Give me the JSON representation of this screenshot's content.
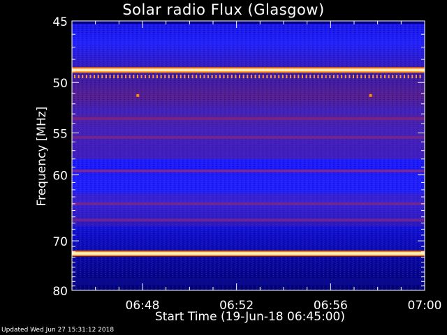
{
  "chart_data": {
    "type": "heatmap",
    "title": "Solar radio Flux (Glasgow)",
    "xlabel": "Start Time (19-Jun-18 06:45:00)",
    "ylabel": "Frequency [MHz]",
    "x_range": [
      "06:45",
      "07:00"
    ],
    "x_ticks": [
      {
        "value": "06:48",
        "minute": 48
      },
      {
        "value": "06:52",
        "minute": 52
      },
      {
        "value": "06:56",
        "minute": 56
      },
      {
        "value": "07:00",
        "minute": 60
      }
    ],
    "y_range": [
      45,
      80
    ],
    "y_ticks": [
      45,
      50,
      55,
      60,
      70,
      80
    ],
    "y_scale": "reciprocal",
    "colormap": [
      "#000050",
      "#0a0ad2",
      "#1e1eff",
      "#7a1f8f",
      "#d23c3c",
      "#ff8c00",
      "#ffd070",
      "#ffffff"
    ],
    "intensity_bands": [
      {
        "mhz": 48.9,
        "intensity": "very high"
      },
      {
        "mhz": 49.5,
        "intensity": "high, periodic bursts"
      },
      {
        "mhz": 51.2,
        "intensity": "isolated spots"
      },
      {
        "mhz": 53.5,
        "intensity": "medium"
      },
      {
        "mhz": 55.5,
        "intensity": "medium"
      },
      {
        "mhz": 59.5,
        "intensity": "medium"
      },
      {
        "mhz": 64.0,
        "intensity": "medium"
      },
      {
        "mhz": 66.5,
        "intensity": "medium"
      },
      {
        "mhz": 72.3,
        "intensity": "very high"
      },
      {
        "mhz": 78.0,
        "intensity": "low"
      }
    ]
  },
  "footer": "Updated Wed Jun 27 15:31:12 2018"
}
